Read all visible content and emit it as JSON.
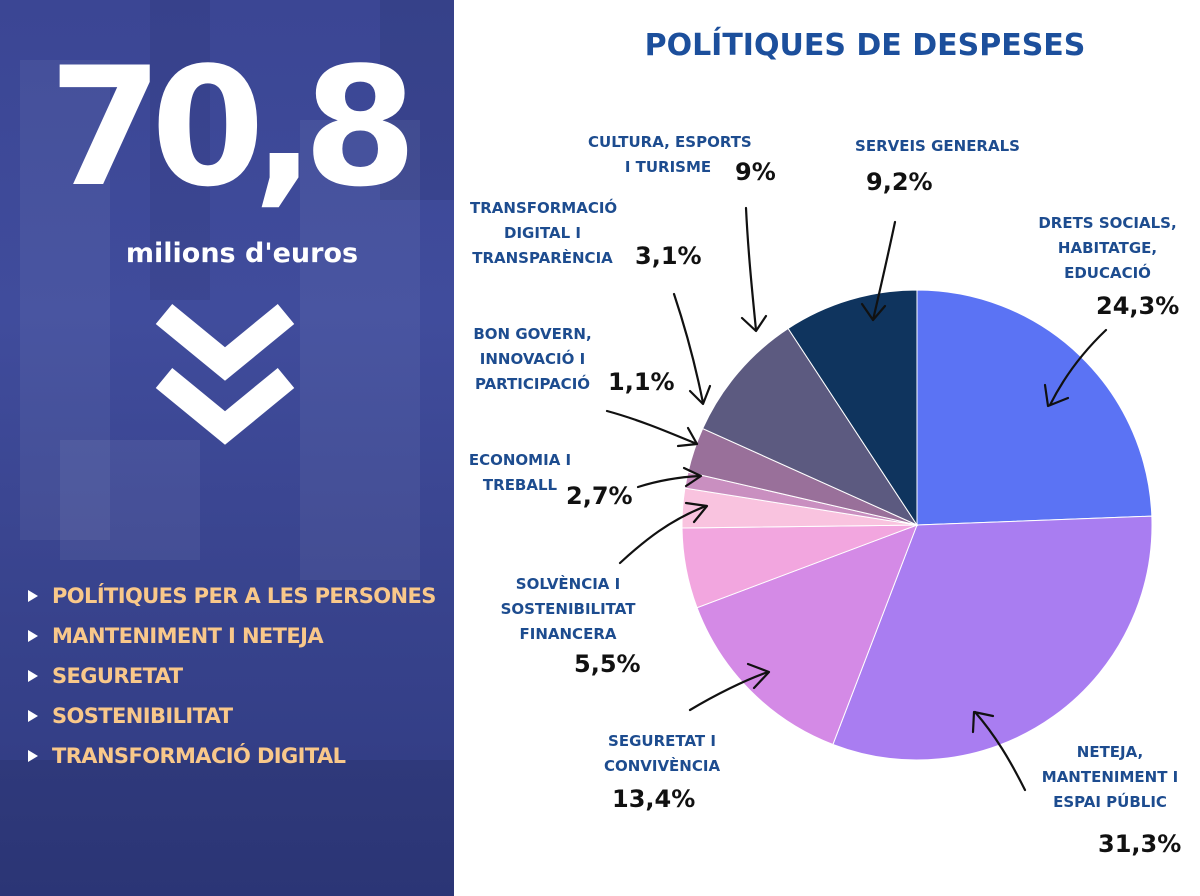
{
  "headline": {
    "value": "70,8",
    "unit": "milions d'euros"
  },
  "priorities": [
    "POLÍTIQUES PER A LES PERSONES",
    "MANTENIMENT I NETEJA",
    "SEGURETAT",
    "SOSTENIBILITAT",
    "TRANSFORMACIÓ DIGITAL"
  ],
  "colors": {
    "left_panel": "#3b4694",
    "highlight_text": "#f9c88a",
    "title": "#1c4f9c"
  },
  "chart_data": {
    "type": "pie",
    "title": "POLÍTIQUES DE DESPESES",
    "slices": [
      {
        "label_lines": [
          "DRETS SOCIALS,",
          "HABITATGE,",
          "EDUCACIÓ"
        ],
        "value": 24.3,
        "value_label": "24,3%",
        "color": "#5b73f4"
      },
      {
        "label_lines": [
          "NETEJA,",
          "MANTENIMENT I",
          "ESPAI PÚBLIC"
        ],
        "value": 31.3,
        "value_label": "31,3%",
        "color": "#a97df1"
      },
      {
        "label_lines": [
          "SEGURETAT I",
          "CONVIVÈNCIA"
        ],
        "value": 13.4,
        "value_label": "13,4%",
        "color": "#d48ae6"
      },
      {
        "label_lines": [
          "SOLVÈNCIA I",
          "SOSTENIBILITAT",
          "FINANCERA"
        ],
        "value": 5.5,
        "value_label": "5,5%",
        "color": "#f2a6df"
      },
      {
        "label_lines": [
          "ECONOMIA I",
          "TREBALL"
        ],
        "value": 2.7,
        "value_label": "2,7%",
        "color": "#f9c3df"
      },
      {
        "label_lines": [
          "BON GOVERN,",
          "INNOVACIÓ I",
          "PARTICIPACIÓ"
        ],
        "value": 1.1,
        "value_label": "1,1%",
        "color": "#c98fc0"
      },
      {
        "label_lines": [
          "TRANSFORMACIÓ",
          "DIGITAL I",
          "TRANSPARÈNCIA"
        ],
        "value": 3.1,
        "value_label": "3,1%",
        "color": "#99709a"
      },
      {
        "label_lines": [
          "CULTURA, ESPORTS",
          "I TURISME"
        ],
        "value": 9.0,
        "value_label": "9%",
        "color": "#5c5a80"
      },
      {
        "label_lines": [
          "SERVEIS GENERALS"
        ],
        "value": 9.2,
        "value_label": "9,2%",
        "color": "#0f345e"
      }
    ]
  }
}
